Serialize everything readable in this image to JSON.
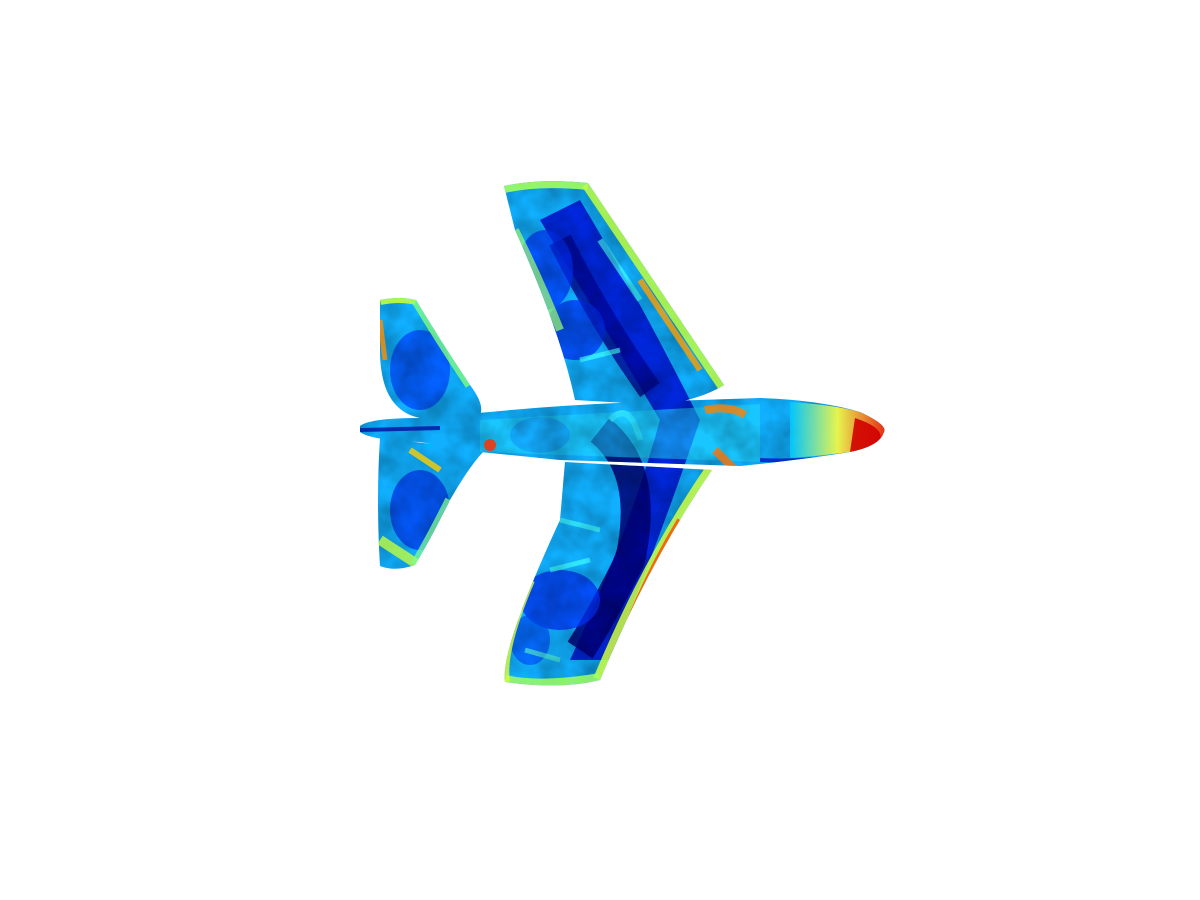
{
  "scene": {
    "subject": "airplane-heatmap",
    "background": "#ffffff",
    "colormap": {
      "name": "jet",
      "stops": [
        "#00008f",
        "#0000ff",
        "#0080ff",
        "#00ffff",
        "#80ff80",
        "#ffff00",
        "#ff8000",
        "#ff0000",
        "#800000"
      ]
    }
  }
}
